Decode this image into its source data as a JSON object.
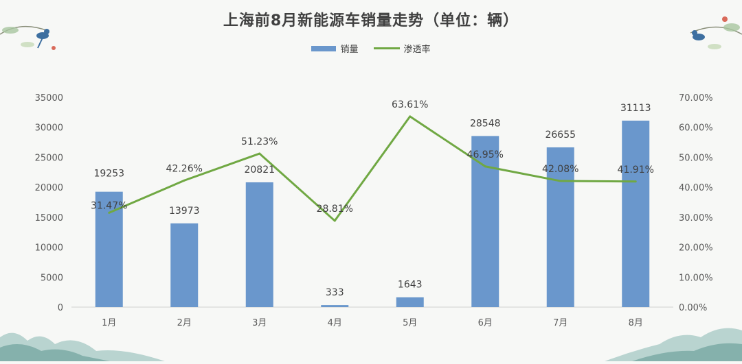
{
  "chart_data": {
    "type": "bar+line",
    "title": "上海前8月新能源车销量走势（单位：辆）",
    "categories": [
      "1月",
      "2月",
      "3月",
      "4月",
      "5月",
      "6月",
      "7月",
      "8月"
    ],
    "series": [
      {
        "name": "销量",
        "type": "bar",
        "axis": "left",
        "color": "#6a97cc",
        "values": [
          19253,
          13973,
          20821,
          333,
          1643,
          28548,
          26655,
          31113
        ],
        "labels": [
          "19253",
          "13973",
          "20821",
          "333",
          "1643",
          "28548",
          "26655",
          "31113"
        ]
      },
      {
        "name": "渗透率",
        "type": "line",
        "axis": "right",
        "color": "#70a843",
        "values": [
          31.47,
          42.26,
          51.23,
          28.81,
          63.61,
          46.95,
          42.08,
          41.91
        ],
        "labels": [
          "31.47%",
          "42.26%",
          "51.23%",
          "28.81%",
          "63.61%",
          "46.95%",
          "42.08%",
          "41.91%"
        ]
      }
    ],
    "y_left": {
      "min": 0,
      "max": 35000,
      "ticks": [
        "0",
        "5000",
        "10000",
        "15000",
        "20000",
        "25000",
        "30000",
        "35000"
      ]
    },
    "y_right": {
      "min": 0,
      "max": 70,
      "ticks": [
        "0.00%",
        "10.00%",
        "20.00%",
        "30.00%",
        "40.00%",
        "50.00%",
        "60.00%",
        "70.00%"
      ]
    },
    "grid": false,
    "legend_position": "top"
  }
}
